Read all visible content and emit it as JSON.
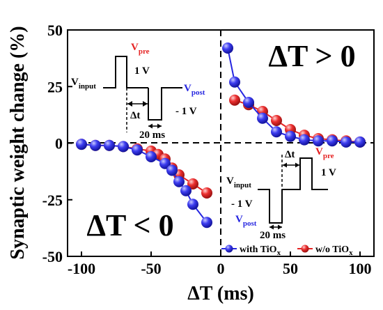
{
  "chart_data": {
    "type": "scatter",
    "xlabel": "ΔT (ms)",
    "ylabel": "Synaptic weight change (%)",
    "xlim": [
      -110,
      110
    ],
    "ylim": [
      -50,
      50
    ],
    "xticks": [
      -100,
      -50,
      0,
      50,
      100
    ],
    "yticks": [
      -50,
      -25,
      0,
      25,
      50
    ],
    "xtick_labels": [
      "-100",
      "-50",
      "0",
      "50",
      "100"
    ],
    "ytick_labels": [
      "-50",
      "-25",
      "0",
      "25",
      "50"
    ],
    "grid": false,
    "reference_lines": [
      "y = 0 (dashed)",
      "x = 0 (dashed)"
    ],
    "legend_position": "bottom-right",
    "series": [
      {
        "name_main": "with TiO",
        "name_sub": "x",
        "color": "#2626e0",
        "connect": true,
        "x_neg": [
          -100,
          -90,
          -80,
          -70,
          -60,
          -50,
          -40,
          -30,
          -20,
          -10
        ],
        "y_neg": [
          -1,
          -1,
          -1.5,
          -2,
          -4,
          -6,
          -10,
          -15,
          -19,
          -26
        ],
        "x_pos": [
          5,
          10,
          15,
          20,
          25,
          30,
          35,
          40,
          45,
          50,
          55,
          60,
          65,
          70,
          75,
          80
        ],
        "y_pos": [
          42,
          34,
          27,
          22,
          18,
          15,
          11,
          7.5,
          5,
          3,
          2,
          1,
          1,
          0.5,
          0.5,
          0
        ],
        "x": [
          -100,
          -90,
          -80,
          -70,
          -60,
          -50,
          -40,
          -35,
          -30,
          -25,
          -20,
          -10,
          5,
          10,
          20,
          30,
          40,
          50,
          60,
          70,
          80,
          90,
          100
        ],
        "y": [
          -0.5,
          -1,
          -1,
          -1.5,
          -3,
          -6,
          -9,
          -12,
          -17,
          -21,
          -27,
          -35,
          42,
          27,
          18,
          11,
          5,
          3,
          1.5,
          1,
          1,
          0.5,
          0.5
        ]
      },
      {
        "name_main": "w/o TiO",
        "name_sub": "x",
        "color": "#e52222",
        "connect": true,
        "x": [
          -100,
          -90,
          -80,
          -70,
          -60,
          -50,
          -45,
          -40,
          -35,
          -30,
          -20,
          -10,
          10,
          20,
          30,
          40,
          50,
          60,
          70,
          80,
          90,
          100
        ],
        "y": [
          -0.5,
          -1,
          -1,
          -1.5,
          -2.5,
          -3.5,
          -5,
          -7,
          -11,
          -14,
          -18,
          -22,
          19,
          17,
          14,
          10,
          6,
          3.5,
          2,
          1.5,
          1,
          0.5
        ]
      }
    ],
    "region_labels": {
      "positive": "ΔT > 0",
      "negative": "ΔT < 0"
    },
    "inset_pre_first": {
      "vinput_main": "V",
      "vinput_sub": "input",
      "vpre_main": "V",
      "vpre_sub": "pre",
      "vpost_main": "V",
      "vpost_sub": "post",
      "v_pos": "1 V",
      "v_neg": "- 1 V",
      "dt": "Δt",
      "width": "20 ms"
    },
    "inset_post_first": {
      "vinput_main": "V",
      "vinput_sub": "input",
      "vpre_main": "V",
      "vpre_sub": "pre",
      "vpost_main": "V",
      "vpost_sub": "post",
      "v_pos": "1 V",
      "v_neg": "- 1 V",
      "dt": "Δt",
      "width": "20 ms"
    },
    "label_colors": {
      "pre": "#e52222",
      "post": "#2626e0"
    }
  }
}
